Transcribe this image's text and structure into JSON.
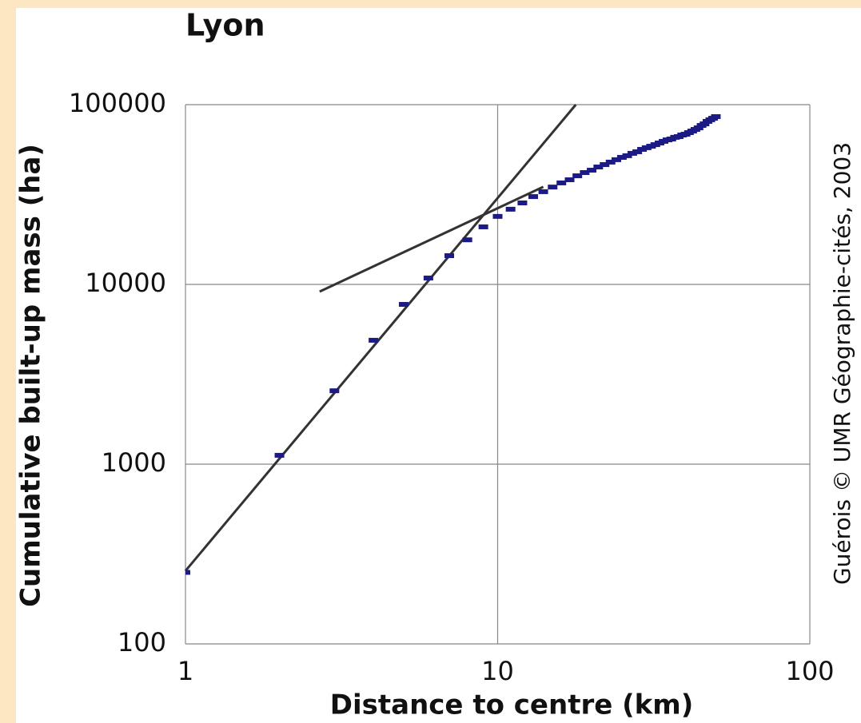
{
  "chart_data": {
    "type": "scatter",
    "title": "Lyon",
    "x_label": "Distance to centre (km)",
    "y_label": "Cumulative built-up mass (ha)",
    "annotation": "Guérois © UMR Géographie-cités, 2003",
    "x": [
      1,
      2,
      3,
      4,
      5,
      6,
      7,
      8,
      9,
      10,
      11,
      12,
      13,
      14,
      15,
      16,
      17,
      18,
      19,
      20,
      21,
      22,
      23,
      24,
      25,
      26,
      27,
      28,
      29,
      30,
      31,
      32,
      33,
      34,
      35,
      36,
      37,
      38,
      39,
      40,
      41,
      42,
      43,
      44,
      45,
      46,
      47,
      48,
      49,
      50
    ],
    "values": [
      250,
      1120,
      2560,
      4890,
      7740,
      10850,
      14450,
      17700,
      20900,
      23900,
      26200,
      28400,
      30800,
      32800,
      34800,
      36700,
      38200,
      40200,
      41900,
      43200,
      45000,
      46400,
      47900,
      49400,
      50900,
      52000,
      53600,
      54700,
      56400,
      57600,
      58700,
      59900,
      61200,
      62500,
      63700,
      64400,
      65800,
      66400,
      67800,
      68500,
      69900,
      71300,
      72800,
      74300,
      76600,
      78200,
      80700,
      82400,
      84000,
      85800
    ],
    "color": "#1c1a85",
    "fit_lines": [
      {
        "x": [
          1,
          17.8
        ],
        "values": [
          255,
          100000
        ],
        "color": "#333333"
      },
      {
        "x": [
          2.69,
          14
        ],
        "values": [
          9120,
          34900
        ],
        "color": "#333333"
      }
    ],
    "xlog": true,
    "ylog": true,
    "xlim": [
      1,
      100
    ],
    "ylim": [
      100,
      100000
    ],
    "xticks": [
      1,
      10,
      100
    ],
    "yticks": [
      100,
      1000,
      10000,
      100000
    ],
    "grid": true
  }
}
